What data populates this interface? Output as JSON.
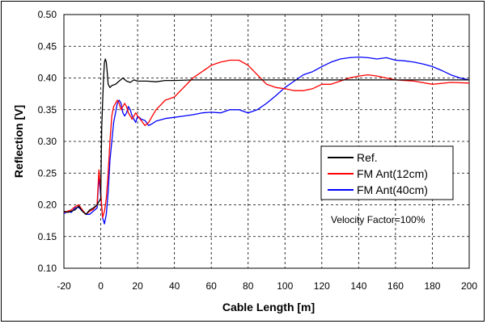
{
  "chart_data": {
    "type": "line",
    "title": "",
    "xlabel": "Cable Length [m]",
    "ylabel": "Reflection [V]",
    "xlim": [
      -20,
      200
    ],
    "ylim": [
      0.1,
      0.5
    ],
    "xticks": [
      -20,
      0,
      20,
      40,
      60,
      80,
      100,
      120,
      140,
      160,
      180,
      200
    ],
    "yticks": [
      0.1,
      0.15,
      0.2,
      0.25,
      0.3,
      0.35,
      0.4,
      0.45,
      0.5
    ],
    "xtick_labels": [
      "-20",
      "0",
      "20",
      "40",
      "60",
      "80",
      "100",
      "120",
      "140",
      "160",
      "180",
      "200"
    ],
    "ytick_labels": [
      "0.10",
      "0.15",
      "0.20",
      "0.25",
      "0.30",
      "0.35",
      "0.40",
      "0.45",
      "0.50"
    ],
    "grid": "major, dashed",
    "legend_position": "right-middle",
    "annotation": "Velocity Factor=100%",
    "series": [
      {
        "name": "Ref.",
        "color": "#000000",
        "x": [
          -20,
          -18,
          -16,
          -14,
          -12,
          -10,
          -8,
          -6,
          -4,
          -2,
          0,
          0.5,
          1,
          1.5,
          2,
          2.5,
          3,
          3.5,
          4,
          5,
          6,
          8,
          10,
          12,
          14,
          16,
          18,
          20,
          25,
          30,
          35,
          40,
          50,
          60,
          70,
          80,
          90,
          100,
          120,
          140,
          160,
          180,
          200
        ],
        "y": [
          0.19,
          0.188,
          0.19,
          0.192,
          0.198,
          0.19,
          0.185,
          0.192,
          0.195,
          0.2,
          0.21,
          0.32,
          0.36,
          0.4,
          0.425,
          0.43,
          0.425,
          0.41,
          0.39,
          0.385,
          0.388,
          0.39,
          0.395,
          0.4,
          0.395,
          0.393,
          0.397,
          0.395,
          0.395,
          0.394,
          0.396,
          0.396,
          0.397,
          0.397,
          0.397,
          0.397,
          0.397,
          0.397,
          0.397,
          0.397,
          0.397,
          0.397,
          0.397
        ]
      },
      {
        "name": "FM Ant(12cm)",
        "color": "#ff0000",
        "x": [
          -20,
          -18,
          -16,
          -14,
          -12,
          -10,
          -8,
          -6,
          -4,
          -2,
          -1,
          0,
          1,
          2,
          3,
          4,
          5,
          6,
          7,
          8,
          9,
          10,
          11,
          12,
          13,
          14,
          15,
          16,
          17,
          18,
          19,
          20,
          22,
          24,
          26,
          28,
          30,
          35,
          40,
          45,
          50,
          55,
          60,
          65,
          70,
          75,
          80,
          85,
          90,
          95,
          100,
          105,
          110,
          115,
          120,
          125,
          130,
          135,
          140,
          145,
          150,
          155,
          160,
          170,
          180,
          190,
          200
        ],
        "y": [
          0.188,
          0.19,
          0.192,
          0.197,
          0.2,
          0.192,
          0.185,
          0.19,
          0.193,
          0.2,
          0.255,
          0.22,
          0.18,
          0.19,
          0.21,
          0.25,
          0.3,
          0.34,
          0.355,
          0.36,
          0.365,
          0.36,
          0.35,
          0.355,
          0.36,
          0.355,
          0.345,
          0.34,
          0.335,
          0.34,
          0.345,
          0.34,
          0.333,
          0.325,
          0.33,
          0.34,
          0.35,
          0.365,
          0.37,
          0.385,
          0.4,
          0.41,
          0.42,
          0.425,
          0.428,
          0.428,
          0.42,
          0.405,
          0.39,
          0.385,
          0.383,
          0.38,
          0.38,
          0.383,
          0.39,
          0.39,
          0.395,
          0.4,
          0.403,
          0.405,
          0.403,
          0.4,
          0.397,
          0.395,
          0.39,
          0.393,
          0.392
        ]
      },
      {
        "name": "FM Ant(40cm)",
        "color": "#0000ff",
        "x": [
          -20,
          -18,
          -16,
          -14,
          -12,
          -10,
          -8,
          -6,
          -4,
          -2,
          -1,
          0,
          1,
          2,
          3,
          4,
          5,
          6,
          7,
          8,
          9,
          10,
          11,
          12,
          13,
          14,
          15,
          16,
          17,
          18,
          19,
          20,
          22,
          24,
          26,
          28,
          30,
          35,
          40,
          45,
          50,
          55,
          60,
          65,
          70,
          75,
          80,
          85,
          90,
          95,
          100,
          105,
          110,
          115,
          120,
          125,
          130,
          135,
          140,
          145,
          150,
          155,
          160,
          165,
          170,
          175,
          180,
          185,
          190,
          195,
          200
        ],
        "y": [
          0.186,
          0.19,
          0.188,
          0.195,
          0.196,
          0.19,
          0.185,
          0.185,
          0.19,
          0.195,
          0.245,
          0.215,
          0.18,
          0.17,
          0.185,
          0.22,
          0.27,
          0.3,
          0.33,
          0.345,
          0.36,
          0.365,
          0.36,
          0.345,
          0.34,
          0.345,
          0.355,
          0.35,
          0.34,
          0.335,
          0.33,
          0.34,
          0.335,
          0.333,
          0.325,
          0.328,
          0.332,
          0.336,
          0.338,
          0.34,
          0.342,
          0.345,
          0.346,
          0.345,
          0.35,
          0.35,
          0.345,
          0.35,
          0.36,
          0.372,
          0.385,
          0.395,
          0.405,
          0.41,
          0.418,
          0.425,
          0.43,
          0.432,
          0.433,
          0.432,
          0.43,
          0.432,
          0.428,
          0.427,
          0.425,
          0.422,
          0.418,
          0.412,
          0.405,
          0.4,
          0.397
        ]
      }
    ]
  }
}
